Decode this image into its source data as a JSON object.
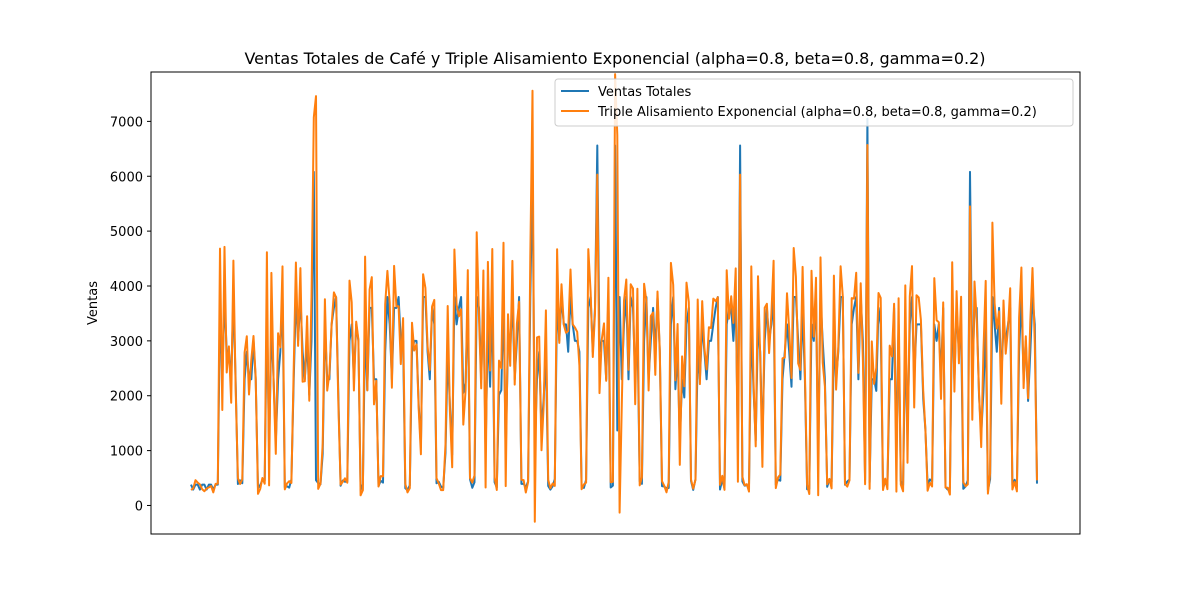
{
  "chart_data": {
    "type": "line",
    "title": "Ventas Totales de Café y Triple Alisamiento Exponencial (alpha=0.8, beta=0.8, gamma=0.2)",
    "xlabel": "",
    "ylabel": "Ventas",
    "ylim": [
      -520,
      7900
    ],
    "y_ticks": [
      0,
      1000,
      2000,
      3000,
      4000,
      5000,
      6000,
      7000
    ],
    "x_ticks_visible": false,
    "grid": false,
    "legend_position": "top-right",
    "n_points": 380,
    "series": [
      {
        "name": "Ventas Totales",
        "color": "#1f77b4",
        "peaks": [
          {
            "x": 55,
            "y": 6080
          },
          {
            "x": 153,
            "y": 6080
          },
          {
            "x": 182,
            "y": 6560
          },
          {
            "x": 190,
            "y": 6560
          },
          {
            "x": 246,
            "y": 6560
          },
          {
            "x": 303,
            "y": 7050
          },
          {
            "x": 349,
            "y": 6080
          }
        ],
        "low_level": 380,
        "high_level_range": [
          2800,
          3800
        ]
      },
      {
        "name": "Triple Alisamiento Exponencial (alpha=0.8, beta=0.8, gamma=0.2)",
        "color": "#ff7f0e",
        "peaks": [
          {
            "x": 56,
            "y": 7460
          },
          {
            "x": 153,
            "y": 7560
          },
          {
            "x": 191,
            "y": 6750
          },
          {
            "x": 182,
            "y": 6030
          },
          {
            "x": 246,
            "y": 6030
          },
          {
            "x": 303,
            "y": 6570
          },
          {
            "x": 349,
            "y": 5450
          }
        ],
        "low_level": 330,
        "minimum": -130
      }
    ]
  }
}
